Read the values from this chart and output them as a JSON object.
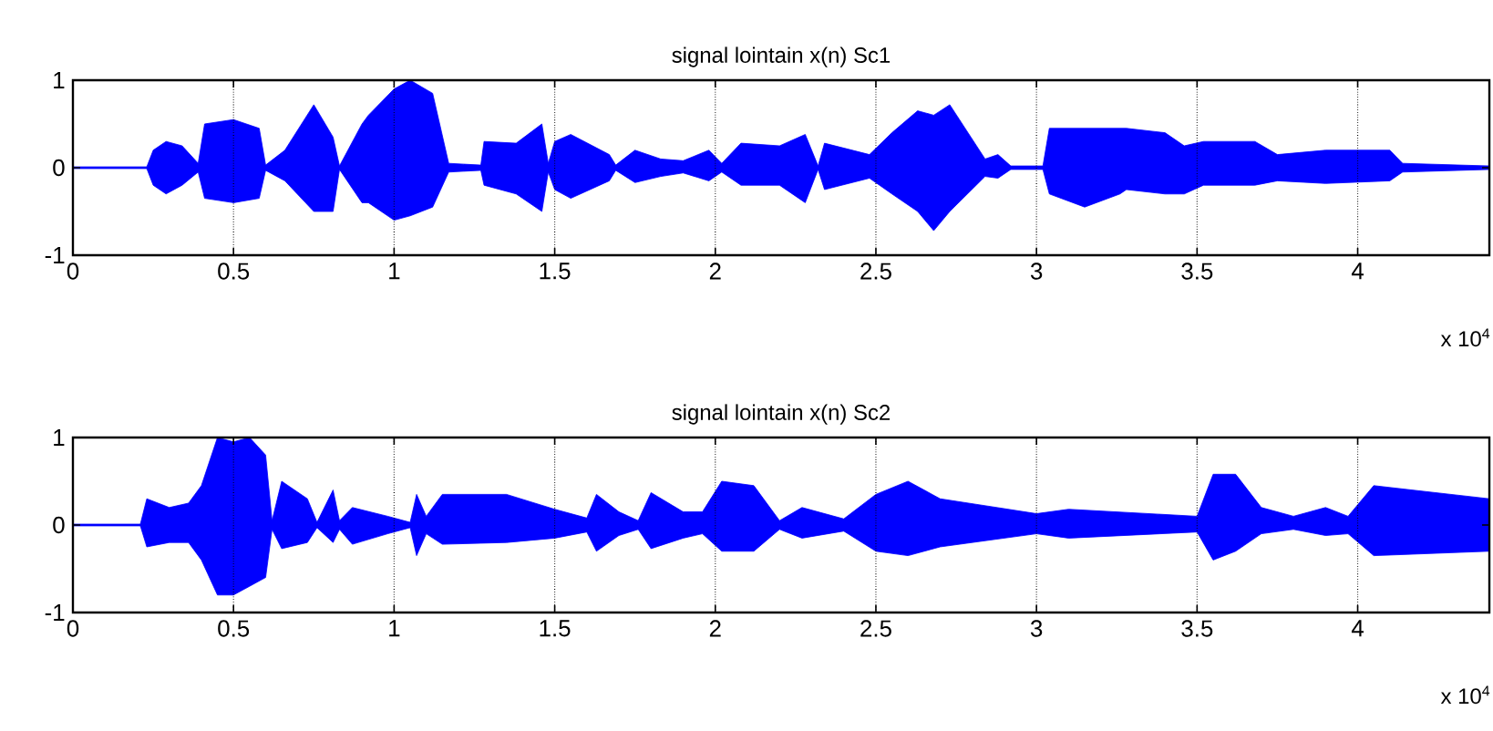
{
  "chart_data": [
    {
      "type": "area",
      "title": "signal lointain x(n) Sc1",
      "grid": "x",
      "xlim": [
        0,
        4.41
      ],
      "ylim": [
        -1,
        1
      ],
      "xticks": [
        0,
        0.5,
        1,
        1.5,
        2,
        2.5,
        3,
        3.5,
        4
      ],
      "yticks": [
        -1,
        0,
        1
      ],
      "annotations": [
        "x 10$^{4}$"
      ],
      "x": [
        0,
        0.23,
        0.25,
        0.29,
        0.34,
        0.39,
        0.41,
        0.5,
        0.58,
        0.6,
        0.66,
        0.75,
        0.81,
        0.83,
        0.9,
        0.92,
        1.0,
        1.05,
        1.12,
        1.17,
        1.27,
        1.28,
        1.38,
        1.46,
        1.48,
        1.5,
        1.55,
        1.67,
        1.69,
        1.75,
        1.83,
        1.9,
        1.98,
        2.02,
        2.08,
        2.2,
        2.28,
        2.32,
        2.34,
        2.48,
        2.55,
        2.63,
        2.68,
        2.73,
        2.84,
        2.88,
        2.92,
        3.02,
        3.04,
        3.15,
        3.26,
        3.28,
        3.4,
        3.46,
        3.52,
        3.68,
        3.75,
        3.9,
        4.1,
        4.14,
        4.41
      ],
      "series": [
        {
          "color": "#0000ff",
          "values": [
            0.01,
            0.01,
            0.2,
            0.3,
            0.25,
            0.05,
            0.5,
            0.55,
            0.45,
            0.03,
            0.2,
            0.72,
            0.35,
            0.02,
            0.5,
            0.6,
            0.9,
            1,
            0.85,
            0.05,
            0.03,
            0.3,
            0.28,
            0.5,
            0.05,
            0.3,
            0.38,
            0.15,
            0.03,
            0.2,
            0.1,
            0.08,
            0.2,
            0.05,
            0.28,
            0.25,
            0.38,
            0.02,
            0.28,
            0.15,
            0.4,
            0.65,
            0.6,
            0.72,
            0.1,
            0.15,
            0.02,
            0.02,
            0.45,
            0.45,
            0.45,
            0.45,
            0.4,
            0.25,
            0.3,
            0.3,
            0.15,
            0.2,
            0.2,
            0.05,
            0.02
          ]
        },
        {
          "color": "#0000ff",
          "values": [
            -0.01,
            -0.01,
            -0.2,
            -0.3,
            -0.2,
            -0.05,
            -0.35,
            -0.4,
            -0.35,
            -0.03,
            -0.15,
            -0.5,
            -0.5,
            -0.02,
            -0.4,
            -0.4,
            -0.6,
            -0.55,
            -0.45,
            -0.05,
            -0.03,
            -0.2,
            -0.3,
            -0.5,
            -0.05,
            -0.25,
            -0.35,
            -0.15,
            -0.03,
            -0.17,
            -0.1,
            -0.06,
            -0.15,
            -0.05,
            -0.2,
            -0.2,
            -0.4,
            -0.02,
            -0.25,
            -0.12,
            -0.3,
            -0.5,
            -0.72,
            -0.5,
            -0.1,
            -0.12,
            -0.02,
            -0.02,
            -0.3,
            -0.45,
            -0.3,
            -0.25,
            -0.3,
            -0.3,
            -0.2,
            -0.2,
            -0.15,
            -0.18,
            -0.15,
            -0.05,
            -0.02
          ]
        }
      ]
    },
    {
      "type": "area",
      "title": "signal lointain x(n) Sc2",
      "grid": "x",
      "xlim": [
        0,
        4.41
      ],
      "ylim": [
        -1,
        1
      ],
      "xticks": [
        0,
        0.5,
        1,
        1.5,
        2,
        2.5,
        3,
        3.5,
        4
      ],
      "yticks": [
        -1,
        0,
        1
      ],
      "annotations": [
        "x 10$^{4}$"
      ],
      "x": [
        0,
        0.21,
        0.23,
        0.3,
        0.36,
        0.4,
        0.45,
        0.5,
        0.55,
        0.6,
        0.62,
        0.65,
        0.73,
        0.76,
        0.81,
        0.83,
        0.87,
        0.98,
        1.05,
        1.07,
        1.1,
        1.15,
        1.35,
        1.5,
        1.6,
        1.63,
        1.7,
        1.76,
        1.8,
        1.9,
        1.96,
        2.02,
        2.12,
        2.2,
        2.27,
        2.4,
        2.5,
        2.6,
        2.7,
        3.0,
        3.1,
        3.5,
        3.55,
        3.62,
        3.7,
        3.8,
        3.9,
        3.97,
        4.05,
        4.41
      ],
      "series": [
        {
          "color": "#0000ff",
          "values": [
            0.01,
            0.01,
            0.3,
            0.2,
            0.25,
            0.45,
            1,
            0.95,
            1,
            0.8,
            0.05,
            0.5,
            0.3,
            0.03,
            0.4,
            0.05,
            0.2,
            0.1,
            0.03,
            0.35,
            0.1,
            0.35,
            0.35,
            0.18,
            0.08,
            0.35,
            0.15,
            0.05,
            0.37,
            0.15,
            0.15,
            0.5,
            0.45,
            0.05,
            0.2,
            0.07,
            0.35,
            0.5,
            0.3,
            0.13,
            0.18,
            0.1,
            0.58,
            0.58,
            0.2,
            0.1,
            0.2,
            0.1,
            0.45,
            0.3
          ]
        },
        {
          "color": "#0000ff",
          "values": [
            -0.01,
            -0.01,
            -0.25,
            -0.2,
            -0.2,
            -0.4,
            -0.8,
            -0.8,
            -0.7,
            -0.6,
            -0.05,
            -0.27,
            -0.2,
            -0.03,
            -0.2,
            -0.05,
            -0.22,
            -0.1,
            -0.03,
            -0.35,
            -0.1,
            -0.22,
            -0.2,
            -0.15,
            -0.08,
            -0.3,
            -0.12,
            -0.05,
            -0.27,
            -0.15,
            -0.1,
            -0.3,
            -0.3,
            -0.05,
            -0.15,
            -0.07,
            -0.3,
            -0.35,
            -0.25,
            -0.1,
            -0.15,
            -0.08,
            -0.4,
            -0.3,
            -0.1,
            -0.05,
            -0.12,
            -0.1,
            -0.35,
            -0.3
          ]
        }
      ]
    }
  ]
}
